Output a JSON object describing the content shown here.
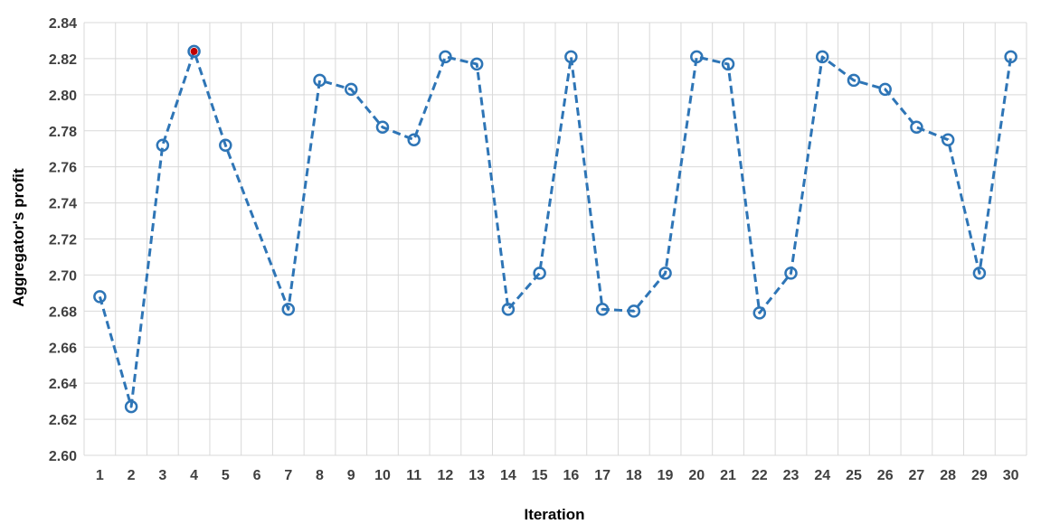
{
  "chart_data": {
    "type": "line",
    "title": "",
    "xlabel": "Iteration",
    "ylabel": "Aggregator's profit",
    "x": [
      1,
      2,
      3,
      4,
      5,
      6,
      7,
      8,
      9,
      10,
      11,
      12,
      13,
      14,
      15,
      16,
      17,
      18,
      19,
      20,
      21,
      22,
      23,
      24,
      25,
      26,
      27,
      28,
      29,
      30
    ],
    "y_ticks": [
      "2.60",
      "2.62",
      "2.64",
      "2.66",
      "2.68",
      "2.70",
      "2.72",
      "2.74",
      "2.76",
      "2.78",
      "2.80",
      "2.82",
      "2.84"
    ],
    "ylim": [
      2.6,
      2.84
    ],
    "grid": true,
    "series": [
      {
        "values": [
          2.688,
          2.627,
          2.772,
          2.824,
          2.772,
          null,
          2.681,
          2.808,
          2.803,
          2.782,
          2.775,
          2.821,
          2.817,
          2.681,
          2.701,
          2.821,
          2.681,
          2.68,
          2.701,
          2.821,
          2.817,
          2.679,
          2.701,
          2.821,
          2.808,
          2.803,
          2.782,
          2.775,
          2.701,
          2.821
        ],
        "color": "#2e75b6",
        "line_style": "dashed",
        "marker": "open-circle"
      }
    ],
    "highlight": {
      "x": 4,
      "value": 2.824,
      "color": "#c00000"
    }
  }
}
